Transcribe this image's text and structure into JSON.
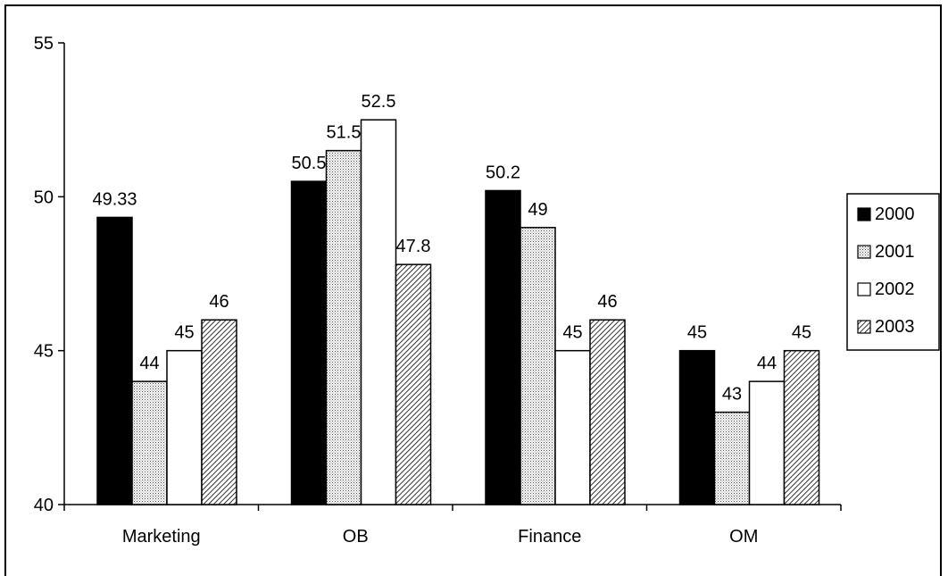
{
  "chart_data": {
    "type": "bar",
    "categories": [
      "Marketing",
      "OB",
      "Finance",
      "OM"
    ],
    "series": [
      {
        "name": "2000",
        "values": [
          49.33,
          50.5,
          50.2,
          45
        ],
        "labels": [
          "49.33",
          "50.5",
          "50.2",
          "45"
        ],
        "fill": "solid-black",
        "color": "#000000"
      },
      {
        "name": "2001",
        "values": [
          44,
          51.5,
          49,
          43
        ],
        "labels": [
          "44",
          "51.5",
          "49",
          "43"
        ],
        "fill": "dotted-gray",
        "color": "#c8c8c8"
      },
      {
        "name": "2002",
        "values": [
          45,
          52.5,
          45,
          44
        ],
        "labels": [
          "45",
          "52.5",
          "45",
          "44"
        ],
        "fill": "white",
        "color": "#ffffff"
      },
      {
        "name": "2003",
        "values": [
          46,
          47.8,
          46,
          45
        ],
        "labels": [
          "46",
          "47.8",
          "46",
          "45"
        ],
        "fill": "diagonal-hatch",
        "color": "#000000"
      }
    ],
    "ylim": [
      40,
      55
    ],
    "yticks": [
      "40",
      "45",
      "50",
      "55"
    ],
    "title": "",
    "xlabel": "",
    "ylabel": "",
    "grid": false,
    "legend_position": "right"
  }
}
